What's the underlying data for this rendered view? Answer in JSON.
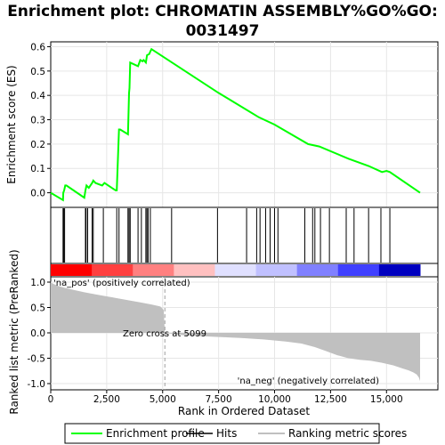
{
  "chart_data": {
    "type": "line",
    "title": "Enrichment plot: CHROMATIN ASSEMBLY%GO%GO: 0031497",
    "title_lines": [
      "Enrichment plot: CHROMATIN ASSEMBLY%GO%GO:",
      "0031497"
    ],
    "top_panel": {
      "ylabel": "Enrichment score (ES)",
      "ylim": [
        -0.06,
        0.62
      ],
      "yticks": [
        0.0,
        0.1,
        0.2,
        0.3,
        0.4,
        0.5,
        0.6
      ],
      "ytick_labels": [
        "0.0",
        "0.1",
        "0.2",
        "0.3",
        "0.4",
        "0.5",
        "0.6"
      ],
      "grid": true,
      "series": [
        {
          "name": "Enrichment profile",
          "color": "#00ff00",
          "x": [
            0,
            550,
            560,
            600,
            650,
            700,
            1500,
            1550,
            1600,
            1700,
            1850,
            1900,
            2000,
            2300,
            2400,
            2900,
            2950,
            3050,
            3100,
            3450,
            3500,
            3520,
            3550,
            3900,
            4000,
            4100,
            4150,
            4250,
            4300,
            4400,
            4450,
            4500,
            7500,
            9300,
            10000,
            11500,
            12000,
            13300,
            14200,
            14800,
            15000,
            15150,
            16500
          ],
          "y": [
            0.0,
            -0.03,
            0.0,
            0.01,
            0.03,
            0.03,
            -0.02,
            0.01,
            0.03,
            0.02,
            0.04,
            0.05,
            0.04,
            0.03,
            0.04,
            0.01,
            0.01,
            0.26,
            0.26,
            0.24,
            0.41,
            0.43,
            0.535,
            0.52,
            0.545,
            0.54,
            0.545,
            0.535,
            0.565,
            0.57,
            0.58,
            0.59,
            0.41,
            0.31,
            0.28,
            0.2,
            0.19,
            0.14,
            0.11,
            0.085,
            0.09,
            0.085,
            0.0
          ]
        }
      ]
    },
    "hits": {
      "name": "Hits",
      "color": "#000000",
      "x": [
        550,
        580,
        620,
        1550,
        1580,
        1650,
        1850,
        1900,
        2350,
        2950,
        3050,
        3450,
        3500,
        3550,
        3900,
        4050,
        4250,
        4300,
        4350,
        4450,
        5400,
        7450,
        8750,
        9200,
        9350,
        9600,
        9800,
        10000,
        10150,
        11350,
        11700,
        11800,
        12050,
        12450,
        13200,
        13550,
        14200,
        14750,
        15150
      ]
    },
    "rank_bar": {
      "colors": [
        "#ff0000",
        "#ff4040",
        "#ff8080",
        "#ffc0c0",
        "#e0e0ff",
        "#c0c0ff",
        "#8080ff",
        "#4040ff",
        "#0000c0"
      ]
    },
    "bottom_panel": {
      "xlabel": "Rank in Ordered Dataset",
      "ylabel": "Ranked list metric (PreRanked)",
      "xlim": [
        0,
        16500
      ],
      "ylim": [
        -1.0,
        1.0
      ],
      "xticks": [
        0,
        2500,
        5000,
        7500,
        10000,
        12500,
        15000
      ],
      "xtick_labels": [
        "0",
        "2,500",
        "5,000",
        "7,500",
        "10,000",
        "12,500",
        "15,000"
      ],
      "yticks": [
        1.0,
        0.5,
        0.0,
        -0.5,
        -1.0
      ],
      "ytick_labels": [
        "1.0",
        "0.5",
        "0.0",
        "-0.5",
        "-1.0"
      ],
      "grid": true,
      "series": [
        {
          "name": "Ranking metric scores",
          "color": "#c0c0c0",
          "x": [
            0,
            100,
            300,
            600,
            1000,
            1500,
            2000,
            2500,
            3000,
            3500,
            4000,
            4500,
            4900,
            5050,
            5099,
            5100,
            6000,
            7500,
            8500,
            9500,
            10500,
            11200,
            11800,
            12300,
            12800,
            13300,
            13800,
            14300,
            14800,
            15300,
            15700,
            16000,
            16200,
            16350,
            16450,
            16500
          ],
          "y": [
            1.0,
            0.97,
            0.93,
            0.89,
            0.85,
            0.8,
            0.76,
            0.72,
            0.68,
            0.64,
            0.6,
            0.56,
            0.52,
            0.45,
            0.0,
            0.0,
            -0.05,
            -0.08,
            -0.1,
            -0.13,
            -0.17,
            -0.21,
            -0.28,
            -0.36,
            -0.44,
            -0.5,
            -0.53,
            -0.55,
            -0.59,
            -0.64,
            -0.7,
            -0.74,
            -0.78,
            -0.82,
            -0.88,
            -0.95
          ]
        }
      ],
      "annotations": {
        "zero_cross": "Zero cross at 5099",
        "zero_cross_x": 5099,
        "pos_label": "'na_pos' (positively correlated)",
        "neg_label": "'na_neg' (negatively correlated)",
        "pos_color": "#ff0000",
        "neg_color": "#0000ff"
      }
    },
    "legend": {
      "placement": "bottom",
      "entries": [
        {
          "label": "Enrichment profile",
          "color": "#00ff00"
        },
        {
          "label": "Hits",
          "color": "#000000"
        },
        {
          "label": "Ranking metric scores",
          "color": "#c0c0c0"
        }
      ]
    }
  }
}
